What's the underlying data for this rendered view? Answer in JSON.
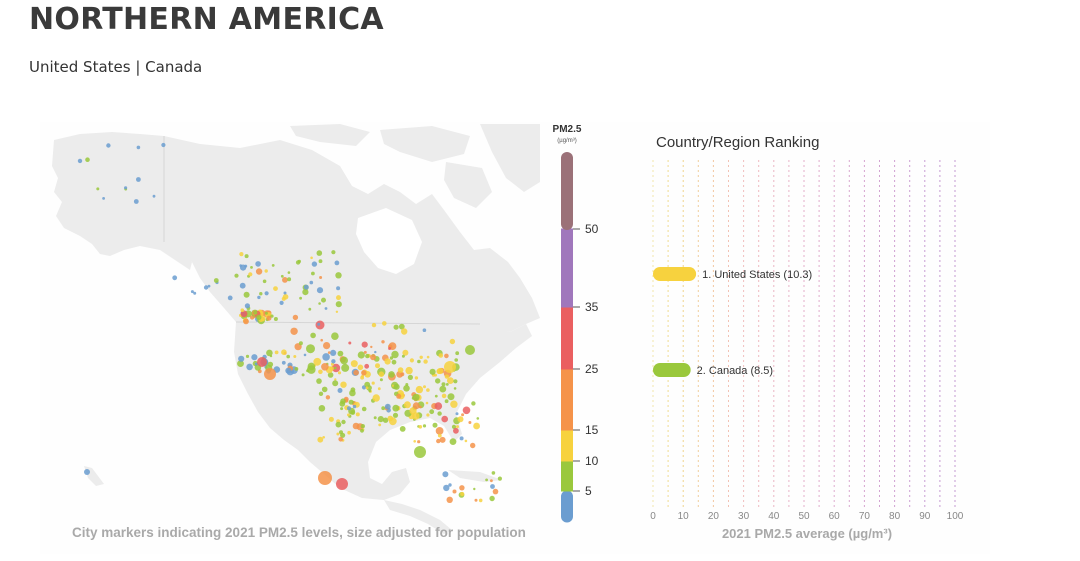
{
  "page": {
    "title": "NORTHERN AMERICA",
    "subtitle": "United States | Canada"
  },
  "map": {
    "caption": "City markers indicating 2021 PM2.5 levels, size adjusted for population"
  },
  "legend": {
    "title": "PM2.5",
    "unit": "(µg/m³)",
    "ticks": [
      "50",
      "35",
      "25",
      "15",
      "10",
      "5"
    ],
    "bands": [
      {
        "from": 0,
        "to": 5,
        "color": "#6b9dd0"
      },
      {
        "from": 5,
        "to": 10,
        "color": "#9ac83c"
      },
      {
        "from": 10,
        "to": 15,
        "color": "#f7d23e"
      },
      {
        "from": 15,
        "to": 25,
        "color": "#f5934a"
      },
      {
        "from": 25,
        "to": 35,
        "color": "#ea5f60"
      },
      {
        "from": 35,
        "to": 50,
        "color": "#a077bc"
      },
      {
        "from": 50,
        "to": 65,
        "color": "#9b7178"
      }
    ]
  },
  "chart_data": {
    "type": "bar",
    "title": "Country/Region Ranking",
    "xlabel": "2021 PM2.5 average (µg/m³)",
    "xticks": [
      0,
      10,
      20,
      30,
      40,
      50,
      60,
      70,
      80,
      90,
      100
    ],
    "xlim": [
      0,
      100
    ],
    "categories": [
      "1. United States (10.3)",
      "2. Canada (8.5)"
    ],
    "values": [
      10.3,
      8.5
    ],
    "colors": [
      "#f7d23e",
      "#9ac83c"
    ]
  }
}
